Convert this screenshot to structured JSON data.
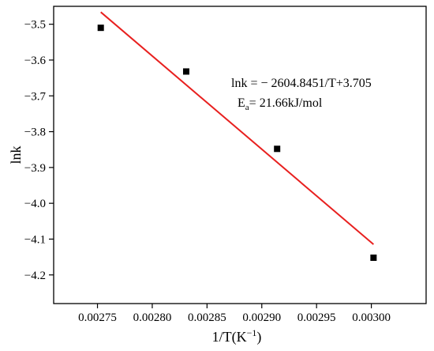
{
  "chart_data": {
    "type": "scatter",
    "xlabel": "1/T(K",
    "xlabel_sup": "−1",
    "xlabel_close": ")",
    "ylabel": "lnk",
    "xlim": [
      0.00271,
      0.00305
    ],
    "ylim": [
      -4.28,
      -3.45
    ],
    "xticks": [
      0.00275,
      0.0028,
      0.00285,
      0.0029,
      0.00295,
      0.003
    ],
    "xtick_labels": [
      "0.00275",
      "0.00280",
      "0.00285",
      "0.00290",
      "0.00295",
      "0.00300"
    ],
    "yticks": [
      -3.5,
      -3.6,
      -3.7,
      -3.8,
      -3.9,
      -4.0,
      -4.1,
      -4.2
    ],
    "ytick_labels": [
      "−3.5",
      "−3.6",
      "−3.7",
      "−3.8",
      "−3.9",
      "−4.0",
      "−4.1",
      "−4.2"
    ],
    "grid": false,
    "series": [
      {
        "marker": "square",
        "color": "#000000",
        "x": [
          0.002753,
          0.002831,
          0.002914,
          0.003002
        ],
        "y": [
          -3.51,
          -3.632,
          -3.848,
          -4.152
        ]
      }
    ],
    "fit_line": {
      "color": "#e8201f",
      "slope": -2604.8451,
      "intercept": 3.705,
      "x_range": [
        0.002753,
        0.003002
      ]
    },
    "annotations": {
      "equation": "lnk = − 2604.8451/T+3.705",
      "ea_prefix": "E",
      "ea_sub": "a",
      "ea_value": "= 21.66kJ/mol"
    }
  }
}
